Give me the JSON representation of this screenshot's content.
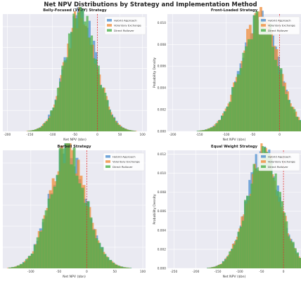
{
  "page_title": "Net NPV Distributions by Strategy and Implementation Method",
  "colors": {
    "series": [
      "#4C8FD0",
      "#F08C3A",
      "#4BB04B"
    ],
    "vline": "#E03030",
    "plot_bg": "#EAEAF2",
    "grid": "#FFFFFF"
  },
  "chart_data": [
    {
      "type": "bar",
      "title": "Belly-Focused (3Y-7Y) Strategy",
      "xlabel": "Net NPV ($bn)",
      "ylabel": "",
      "xlim": [
        -210,
        110
      ],
      "ylim": [
        0,
        0.0112
      ],
      "xticks": [
        "-200",
        "-150",
        "-100",
        "-50",
        "0",
        "50",
        "100"
      ],
      "xtick_values": [
        -200,
        -150,
        -100,
        -50,
        0,
        50,
        100
      ],
      "yticks": [],
      "reference_line_x": 0,
      "mean": -55,
      "sd": 40,
      "skew": 0.7,
      "peak": 0.0106,
      "range": [
        -210,
        100
      ],
      "legend": [
        "Hybrid Approach",
        "Voluntary Exchange",
        "Direct Rollover"
      ],
      "legend_position": "top-right",
      "grid": true
    },
    {
      "type": "bar",
      "title": "Front-Loaded Strategy",
      "xlabel": "Net NPV ($bn)",
      "ylabel": "Probability Density",
      "xlim": [
        -210,
        40
      ],
      "ylim": [
        0,
        0.0108
      ],
      "xticks": [
        "-200",
        "-150",
        "-100",
        "-50",
        "0"
      ],
      "xtick_values": [
        -200,
        -150,
        -100,
        -50,
        0
      ],
      "yticks": [
        "0.000",
        "0.002",
        "0.004",
        "0.006",
        "0.008",
        "0.010"
      ],
      "ytick_values": [
        0,
        0.002,
        0.004,
        0.006,
        0.008,
        0.01
      ],
      "reference_line_x": 0,
      "mean": -52,
      "sd": 38,
      "skew": 0.55,
      "peak": 0.0101,
      "range": [
        -200,
        40
      ],
      "legend": [
        "Hybrid Approach",
        "Voluntary Exchange",
        "Direct Rollover"
      ],
      "legend_position": "top-right",
      "grid": true
    },
    {
      "type": "bar",
      "title": "Barbell Strategy",
      "xlabel": "Net NPV ($bn)",
      "ylabel": "",
      "xlim": [
        -150,
        105
      ],
      "ylim": [
        0,
        0.0112
      ],
      "xticks": [
        "-100",
        "-50",
        "0",
        "50",
        "100"
      ],
      "xtick_values": [
        -100,
        -50,
        0,
        50,
        100
      ],
      "yticks": [],
      "reference_line_x": 0,
      "mean": -52,
      "sd": 37,
      "skew": 0.75,
      "peak": 0.0107,
      "range": [
        -150,
        100
      ],
      "legend": [
        "Hybrid Approach",
        "Voluntary Exchange",
        "Direct Rollover"
      ],
      "legend_position": "top-right",
      "grid": true
    },
    {
      "type": "bar",
      "title": "Equal Weight Strategy",
      "xlabel": "Net NPV ($bn)",
      "ylabel": "Probability Density",
      "xlim": [
        -265,
        40
      ],
      "ylim": [
        0,
        0.0124
      ],
      "xticks": [
        "-250",
        "-200",
        "-150",
        "-100",
        "-50",
        "0"
      ],
      "xtick_values": [
        -250,
        -200,
        -150,
        -100,
        -50,
        0
      ],
      "yticks": [
        "0.000",
        "0.002",
        "0.004",
        "0.006",
        "0.008",
        "0.010",
        "0.012"
      ],
      "ytick_values": [
        0,
        0.002,
        0.004,
        0.006,
        0.008,
        0.01,
        0.012
      ],
      "reference_line_x": 0,
      "mean": -62,
      "sd": 42,
      "skew": 0.55,
      "peak": 0.0115,
      "range": [
        -260,
        40
      ],
      "legend": [
        "Hybrid Approach",
        "Voluntary Exchange",
        "Direct Rollover"
      ],
      "legend_position": "top-right",
      "grid": true
    }
  ]
}
